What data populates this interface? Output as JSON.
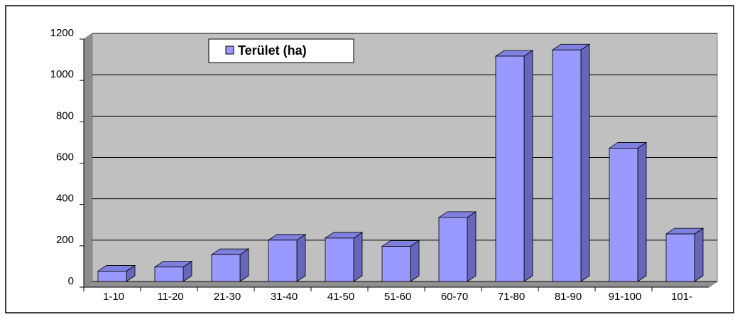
{
  "chart_data": {
    "type": "bar3d",
    "categories": [
      "1-10",
      "11-20",
      "21-30",
      "31-40",
      "41-50",
      "51-60",
      "60-70",
      "71-80",
      "81-90",
      "91-100",
      "101-"
    ],
    "series": [
      {
        "name": "Terület (ha)",
        "color": "#9999ff",
        "values": [
          50,
          70,
          130,
          200,
          210,
          170,
          310,
          1090,
          1120,
          645,
          230
        ]
      }
    ],
    "ylim": [
      0,
      1200
    ],
    "yticks": [
      0,
      200,
      400,
      600,
      800,
      1000,
      1200
    ],
    "grid": true,
    "legend": "top-left"
  }
}
